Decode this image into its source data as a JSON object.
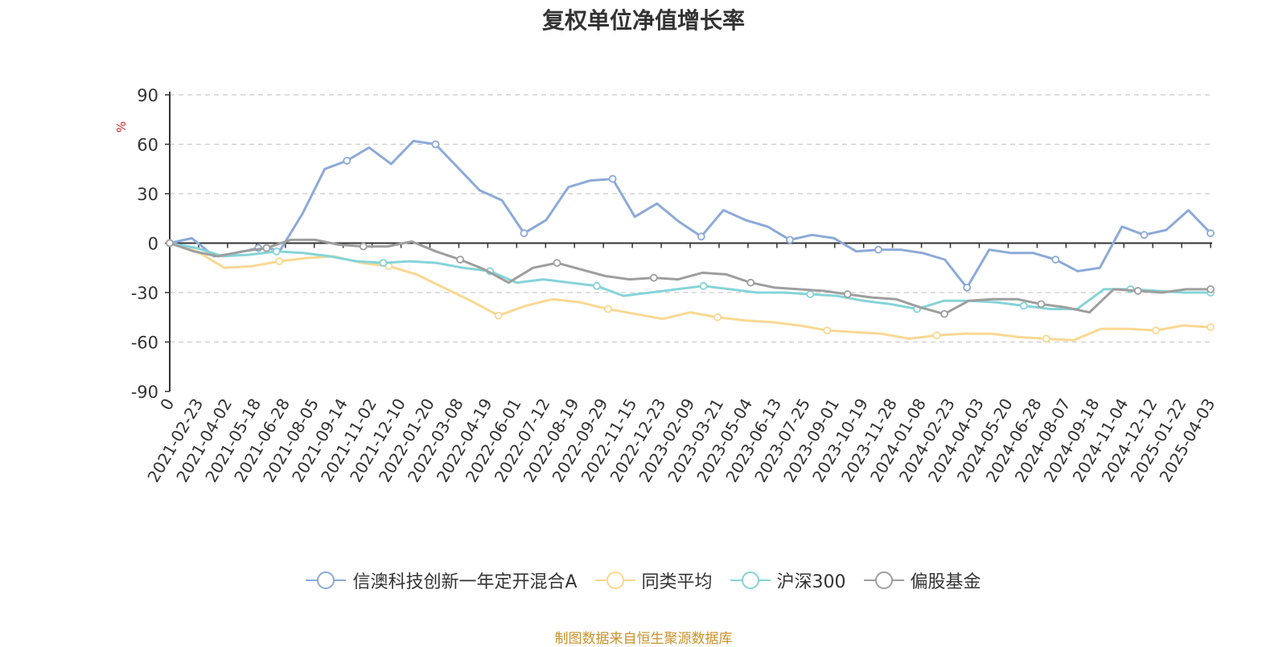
{
  "chart_data": {
    "type": "line",
    "title": "复权单位净值增长率",
    "ylabel": "%",
    "ylim": [
      -90,
      90
    ],
    "yticks": [
      90,
      60,
      30,
      0,
      -30,
      -60,
      -90
    ],
    "x_tick_labels": [
      "0",
      "2021-02-23",
      "2021-04-02",
      "2021-05-18",
      "2021-06-28",
      "2021-08-05",
      "2021-09-14",
      "2021-11-02",
      "2021-12-10",
      "2022-01-20",
      "2022-03-08",
      "2022-04-19",
      "2022-06-01",
      "2022-07-12",
      "2022-08-19",
      "2022-09-29",
      "2022-11-15",
      "2022-12-23",
      "2023-02-09",
      "2023-03-21",
      "2023-05-04",
      "2023-06-13",
      "2023-07-25",
      "2023-09-01",
      "2023-10-19",
      "2023-11-28",
      "2024-01-08",
      "2024-02-23",
      "2024-04-03",
      "2024-05-20",
      "2024-06-28",
      "2024-08-07",
      "2024-09-18",
      "2024-11-04",
      "2024-12-12",
      "2025-01-22",
      "2025-04-03"
    ],
    "grid": true,
    "legend_position": "bottom",
    "series": [
      {
        "name": "信澳科技创新一年定开混合A",
        "color": "#8caad8",
        "values": [
          0,
          3,
          -8,
          -6,
          -3,
          -4,
          18,
          45,
          50,
          58,
          48,
          62,
          60,
          46,
          32,
          26,
          6,
          14,
          34,
          38,
          39,
          16,
          24,
          13,
          4,
          20,
          14,
          10,
          2,
          5,
          3,
          -5,
          -4,
          -4,
          -6,
          -10,
          -27,
          -4,
          -6,
          -6,
          -10,
          -17,
          -15,
          10,
          5,
          8,
          20,
          6
        ]
      },
      {
        "name": "同类平均",
        "color": "#fad892",
        "values": [
          0,
          -5,
          -15,
          -14,
          -11,
          -9,
          -8,
          -12,
          -14,
          -19,
          -27,
          -35,
          -44,
          -38,
          -34,
          -36,
          -40,
          -43,
          -46,
          -42,
          -45,
          -47,
          -48,
          -50,
          -53,
          -54,
          -55,
          -58,
          -56,
          -55,
          -55,
          -57,
          -58,
          -59,
          -52,
          -52,
          -53,
          -50,
          -51
        ]
      },
      {
        "name": "沪深300",
        "color": "#85d4d8",
        "values": [
          0,
          -3,
          -8,
          -7,
          -5,
          -6,
          -8,
          -11,
          -12,
          -11,
          -12,
          -15,
          -17,
          -24,
          -22,
          -24,
          -26,
          -32,
          -30,
          -28,
          -26,
          -28,
          -30,
          -30,
          -31,
          -32,
          -35,
          -37,
          -40,
          -35,
          -35,
          -36,
          -38,
          -40,
          -40,
          -28,
          -28,
          -29,
          -30,
          -30
        ]
      },
      {
        "name": "偏股基金",
        "color": "#9e9e9e",
        "values": [
          0,
          -5,
          -8,
          -5,
          -3,
          2,
          2,
          -1,
          -2,
          -2,
          1,
          -5,
          -10,
          -16,
          -24,
          -15,
          -12,
          -16,
          -20,
          -22,
          -21,
          -22,
          -18,
          -19,
          -24,
          -27,
          -28,
          -29,
          -31,
          -33,
          -34,
          -39,
          -43,
          -35,
          -34,
          -34,
          -37,
          -39,
          -42,
          -28,
          -29,
          -30,
          -28,
          -28
        ]
      }
    ]
  },
  "source_text": "制图数据来自恒生聚源数据库"
}
